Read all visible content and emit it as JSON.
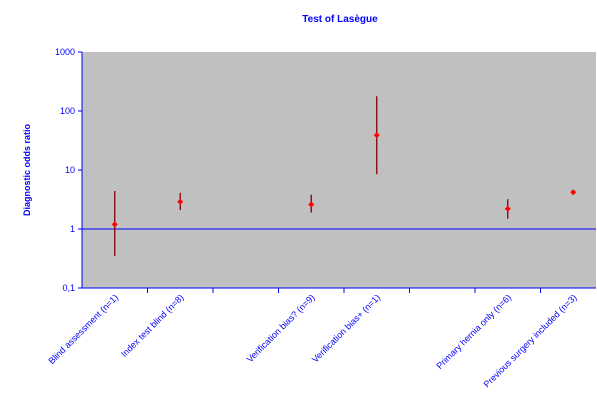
{
  "chart_data": {
    "type": "errorbar",
    "title": "Test of Lasègue",
    "y_label": "Diagnostic odds ratio",
    "categories": [
      "Blind assessment (n=1)",
      "Index test blind (n=8)",
      null,
      "Verification bias? (n=9)",
      "Verification bias+ (n=1)",
      null,
      "Primary hernia only (n=6)",
      "Previous surgery included (n=3)"
    ],
    "series": [
      {
        "name": "Diagnostic odds ratio",
        "color": "#ff0000",
        "bar_color": "#800000",
        "values": [
          1.2,
          2.9,
          null,
          2.6,
          39,
          null,
          2.2,
          4.2
        ],
        "lower": [
          0.35,
          2.1,
          null,
          1.9,
          8.5,
          null,
          1.5,
          3.9
        ],
        "upper": [
          4.4,
          4.1,
          null,
          3.8,
          178,
          null,
          3.2,
          4.5
        ]
      }
    ],
    "log_scale": true,
    "ylim": [
      0.1,
      1000
    ],
    "yticks": [
      {
        "value": 0.1,
        "label": "0,1"
      },
      1,
      10,
      100,
      1000
    ],
    "hline": 1,
    "plot_background": "#c0c0c0",
    "text_color": "#0000ff"
  }
}
